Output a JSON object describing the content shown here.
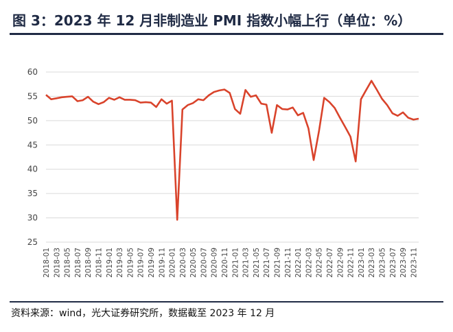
{
  "title": "图 3：2023 年 12 月非制造业 PMI 指数小幅上行（单位：%）",
  "source": "资料来源：wind，光大证券研究所，数据截至 2023 年 12 月",
  "chart_data": {
    "type": "line",
    "ylim": [
      25,
      60
    ],
    "yticks": [
      25,
      30,
      35,
      40,
      45,
      50,
      55,
      60
    ],
    "grid": true,
    "line_color": "#d9432b",
    "grid_color": "#d9d9d9",
    "x": [
      "2018-01",
      "2018-02",
      "2018-03",
      "2018-04",
      "2018-05",
      "2018-06",
      "2018-07",
      "2018-08",
      "2018-09",
      "2018-10",
      "2018-11",
      "2018-12",
      "2019-01",
      "2019-02",
      "2019-03",
      "2019-04",
      "2019-05",
      "2019-06",
      "2019-07",
      "2019-08",
      "2019-09",
      "2019-10",
      "2019-11",
      "2019-12",
      "2020-01",
      "2020-02",
      "2020-03",
      "2020-04",
      "2020-05",
      "2020-06",
      "2020-07",
      "2020-08",
      "2020-09",
      "2020-10",
      "2020-11",
      "2020-12",
      "2021-01",
      "2021-02",
      "2021-03",
      "2021-04",
      "2021-05",
      "2021-06",
      "2021-07",
      "2021-08",
      "2021-09",
      "2021-10",
      "2021-11",
      "2021-12",
      "2022-01",
      "2022-02",
      "2022-03",
      "2022-04",
      "2022-05",
      "2022-06",
      "2022-07",
      "2022-08",
      "2022-09",
      "2022-10",
      "2022-11",
      "2022-12",
      "2023-01",
      "2023-02",
      "2023-03",
      "2023-04",
      "2023-05",
      "2023-06",
      "2023-07",
      "2023-08",
      "2023-09",
      "2023-10",
      "2023-11",
      "2023-12"
    ],
    "xtick_labels": [
      "2018-01",
      "2018-03",
      "2018-05",
      "2018-07",
      "2018-09",
      "2018-11",
      "2019-01",
      "2019-03",
      "2019-05",
      "2019-07",
      "2019-09",
      "2019-11",
      "2020-01",
      "2020-03",
      "2020-05",
      "2020-07",
      "2020-09",
      "2020-11",
      "2021-01",
      "2021-03",
      "2021-05",
      "2021-07",
      "2021-09",
      "2021-11",
      "2022-01",
      "2022-03",
      "2022-05",
      "2022-07",
      "2022-09",
      "2022-11",
      "2023-01",
      "2023-03",
      "2023-05",
      "2023-07",
      "2023-09",
      "2023-11"
    ],
    "values": [
      55.3,
      54.4,
      54.6,
      54.8,
      54.9,
      55.0,
      54.0,
      54.2,
      54.9,
      53.9,
      53.4,
      53.8,
      54.7,
      54.3,
      54.8,
      54.3,
      54.3,
      54.2,
      53.7,
      53.8,
      53.7,
      52.8,
      54.4,
      53.5,
      54.1,
      29.6,
      52.3,
      53.2,
      53.6,
      54.4,
      54.2,
      55.2,
      55.9,
      56.2,
      56.4,
      55.7,
      52.4,
      51.4,
      56.3,
      54.9,
      55.2,
      53.5,
      53.3,
      47.5,
      53.2,
      52.4,
      52.3,
      52.7,
      51.1,
      51.6,
      48.4,
      41.9,
      47.8,
      54.7,
      53.8,
      52.6,
      50.6,
      48.7,
      46.7,
      41.6,
      54.4,
      56.3,
      58.2,
      56.4,
      54.5,
      53.2,
      51.5,
      51.0,
      51.7,
      50.6,
      50.2,
      50.4
    ]
  }
}
